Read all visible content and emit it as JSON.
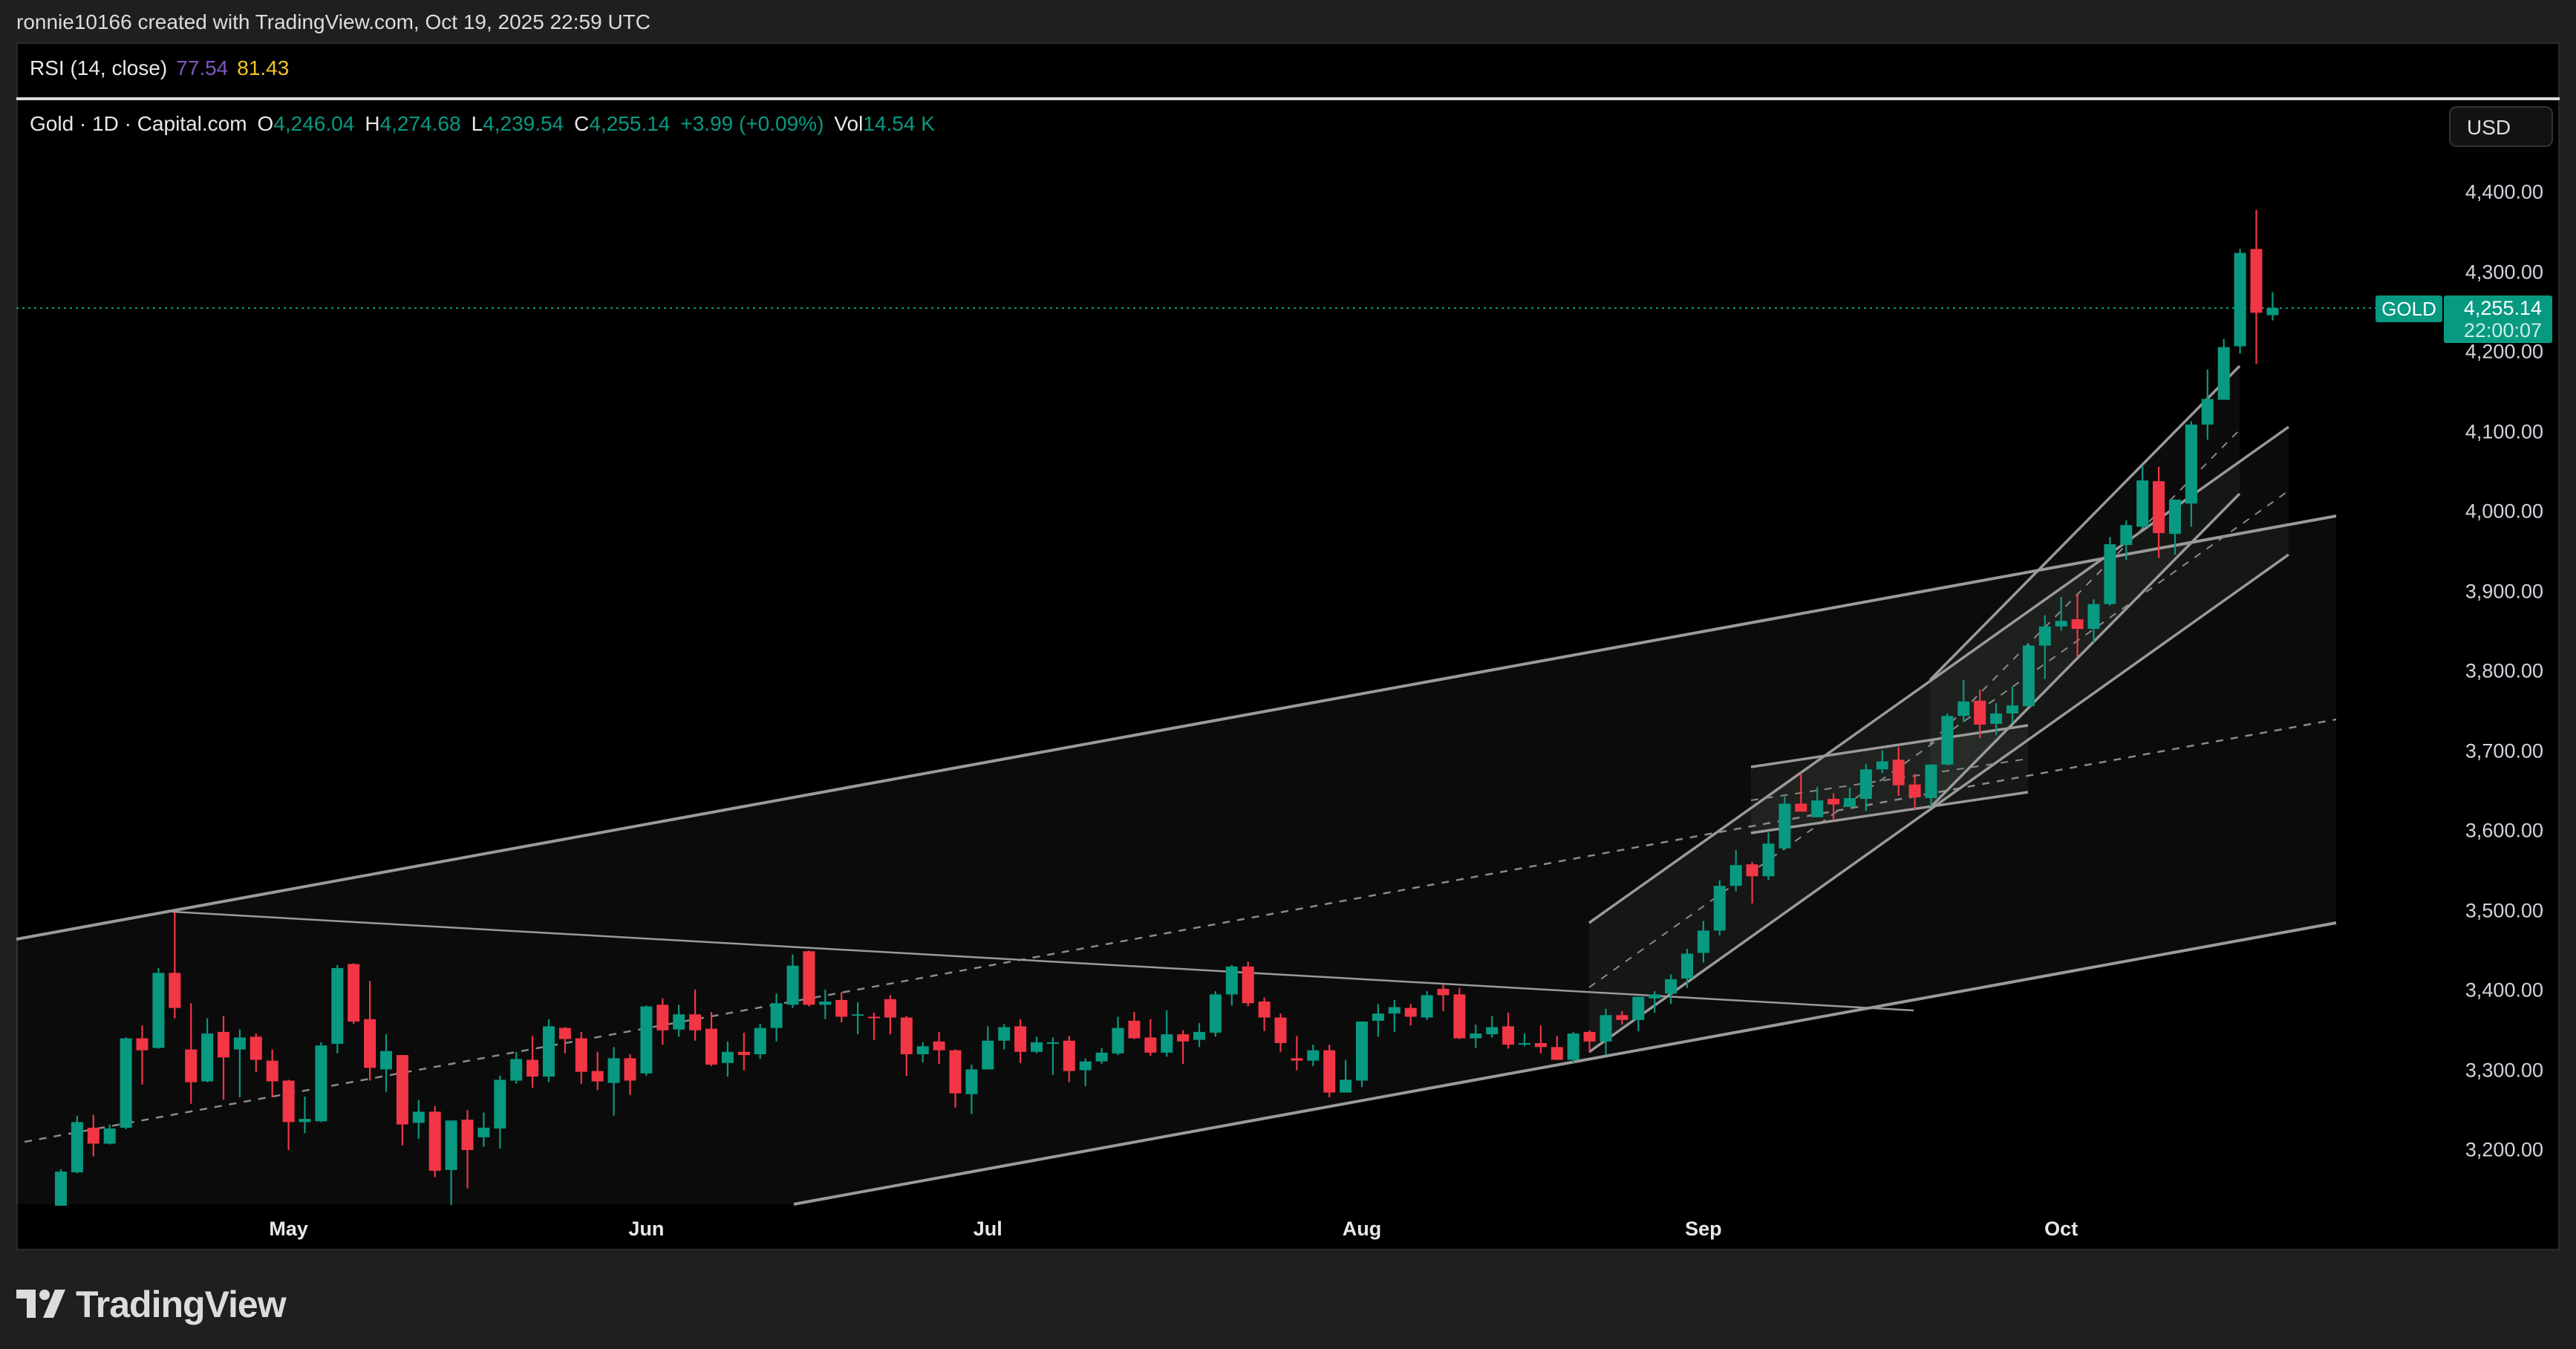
{
  "header": {
    "credit": "ronnie10166 created with TradingView.com, Oct 19, 2025 22:59 UTC"
  },
  "rsi": {
    "label": "RSI (14, close)",
    "value1": "77.54",
    "value2": "81.43"
  },
  "legend": {
    "symbol": "Gold · 1D · Capital.com",
    "o_label": "O",
    "o": "4,246.04",
    "h_label": "H",
    "h": "4,274.68",
    "l_label": "L",
    "l": "4,239.54",
    "c_label": "C",
    "c": "4,255.14",
    "change": "+3.99 (+0.09%)",
    "vol_label": "Vol",
    "vol": "14.54 K"
  },
  "currency_button": "USD",
  "last_price": {
    "tag": "GOLD",
    "price": "4,255.14",
    "countdown": "22:00:07"
  },
  "logo": {
    "text": "TradingView"
  },
  "colors": {
    "up": "#089981",
    "down": "#f23645",
    "background": "#000000",
    "drawing": "#9a9a9a",
    "rsi_line": "#7e57c2",
    "rsi_ma": "#f2c426"
  },
  "chart_data": {
    "type": "candlestick",
    "interval": "1D",
    "y_ticks": [
      "4,400.00",
      "4,300.00",
      "4,200.00",
      "4,100.00",
      "4,000.00",
      "3,900.00",
      "3,800.00",
      "3,700.00",
      "3,600.00",
      "3,500.00",
      "3,400.00",
      "3,300.00",
      "3,200.00"
    ],
    "y_tick_values": [
      4400,
      4300,
      4200,
      4100,
      4000,
      3900,
      3800,
      3700,
      3600,
      3500,
      3400,
      3300,
      3200
    ],
    "x_ticks": [
      {
        "label": "May",
        "index": 14
      },
      {
        "label": "Jun",
        "index": 36
      },
      {
        "label": "Jul",
        "index": 57
      },
      {
        "label": "Aug",
        "index": 80
      },
      {
        "label": "Sep",
        "index": 101
      },
      {
        "label": "Oct",
        "index": 123
      }
    ],
    "last_price": 4255.14,
    "ohlc_fields": [
      "open",
      "high",
      "low",
      "close"
    ],
    "ohlc": [
      [
        3105,
        3176,
        3090,
        3173
      ],
      [
        3172,
        3243,
        3171,
        3235
      ],
      [
        3228,
        3244,
        3192,
        3208
      ],
      [
        3208,
        3232,
        3207,
        3227
      ],
      [
        3228,
        3341,
        3226,
        3340
      ],
      [
        3340,
        3356,
        3282,
        3325
      ],
      [
        3328,
        3428,
        3327,
        3422
      ],
      [
        3422,
        3498,
        3365,
        3378
      ],
      [
        3326,
        3384,
        3258,
        3285
      ],
      [
        3286,
        3365,
        3285,
        3346
      ],
      [
        3348,
        3368,
        3263,
        3316
      ],
      [
        3326,
        3351,
        3266,
        3341
      ],
      [
        3342,
        3346,
        3298,
        3313
      ],
      [
        3312,
        3326,
        3266,
        3286
      ],
      [
        3287,
        3288,
        3200,
        3235
      ],
      [
        3235,
        3267,
        3221,
        3239
      ],
      [
        3236,
        3335,
        3235,
        3331
      ],
      [
        3333,
        3432,
        3321,
        3428
      ],
      [
        3433,
        3434,
        3358,
        3361
      ],
      [
        3364,
        3412,
        3287,
        3303
      ],
      [
        3301,
        3345,
        3273,
        3324
      ],
      [
        3319,
        3319,
        3206,
        3232
      ],
      [
        3234,
        3263,
        3214,
        3248
      ],
      [
        3248,
        3255,
        3166,
        3174
      ],
      [
        3175,
        3237,
        3131,
        3237
      ],
      [
        3238,
        3250,
        3152,
        3200
      ],
      [
        3216,
        3247,
        3204,
        3228
      ],
      [
        3227,
        3293,
        3202,
        3288
      ],
      [
        3287,
        3323,
        3283,
        3314
      ],
      [
        3313,
        3343,
        3278,
        3292
      ],
      [
        3292,
        3364,
        3285,
        3355
      ],
      [
        3353,
        3354,
        3321,
        3339
      ],
      [
        3340,
        3348,
        3283,
        3298
      ],
      [
        3299,
        3323,
        3275,
        3286
      ],
      [
        3284,
        3329,
        3243,
        3315
      ],
      [
        3315,
        3320,
        3269,
        3287
      ],
      [
        3296,
        3381,
        3293,
        3380
      ],
      [
        3382,
        3390,
        3332,
        3350
      ],
      [
        3351,
        3382,
        3342,
        3370
      ],
      [
        3370,
        3401,
        3337,
        3350
      ],
      [
        3352,
        3373,
        3305,
        3307
      ],
      [
        3309,
        3336,
        3292,
        3323
      ],
      [
        3323,
        3347,
        3300,
        3319
      ],
      [
        3320,
        3358,
        3314,
        3353
      ],
      [
        3353,
        3396,
        3336,
        3384
      ],
      [
        3382,
        3445,
        3378,
        3431
      ],
      [
        3449,
        3450,
        3380,
        3382
      ],
      [
        3382,
        3401,
        3364,
        3386
      ],
      [
        3388,
        3398,
        3360,
        3367
      ],
      [
        3369,
        3385,
        3345,
        3370
      ],
      [
        3367,
        3372,
        3338,
        3366
      ],
      [
        3389,
        3394,
        3345,
        3366
      ],
      [
        3366,
        3368,
        3293,
        3320
      ],
      [
        3320,
        3335,
        3310,
        3330
      ],
      [
        3336,
        3348,
        3308,
        3325
      ],
      [
        3325,
        3326,
        3253,
        3271
      ],
      [
        3270,
        3307,
        3245,
        3301
      ],
      [
        3301,
        3355,
        3301,
        3337
      ],
      [
        3337,
        3358,
        3326,
        3354
      ],
      [
        3355,
        3364,
        3309,
        3323
      ],
      [
        3323,
        3342,
        3321,
        3335
      ],
      [
        3333,
        3341,
        3294,
        3335
      ],
      [
        3337,
        3343,
        3285,
        3299
      ],
      [
        3300,
        3315,
        3280,
        3311
      ],
      [
        3311,
        3328,
        3308,
        3322
      ],
      [
        3321,
        3367,
        3319,
        3353
      ],
      [
        3362,
        3373,
        3339,
        3340
      ],
      [
        3341,
        3364,
        3318,
        3322
      ],
      [
        3322,
        3375,
        3317,
        3345
      ],
      [
        3345,
        3350,
        3308,
        3336
      ],
      [
        3338,
        3359,
        3329,
        3348
      ],
      [
        3347,
        3399,
        3342,
        3395
      ],
      [
        3395,
        3432,
        3381,
        3430
      ],
      [
        3430,
        3436,
        3380,
        3384
      ],
      [
        3386,
        3391,
        3349,
        3366
      ],
      [
        3366,
        3371,
        3323,
        3334
      ],
      [
        3315,
        3343,
        3300,
        3312
      ],
      [
        3312,
        3332,
        3305,
        3325
      ],
      [
        3325,
        3332,
        3266,
        3272
      ],
      [
        3272,
        3313,
        3272,
        3288
      ],
      [
        3287,
        3361,
        3279,
        3361
      ],
      [
        3362,
        3383,
        3342,
        3371
      ],
      [
        3371,
        3388,
        3348,
        3379
      ],
      [
        3378,
        3383,
        3356,
        3367
      ],
      [
        3366,
        3399,
        3363,
        3394
      ],
      [
        3402,
        3407,
        3374,
        3394
      ],
      [
        3395,
        3403,
        3339,
        3340
      ],
      [
        3340,
        3357,
        3328,
        3346
      ],
      [
        3345,
        3368,
        3341,
        3354
      ],
      [
        3355,
        3372,
        3327,
        3332
      ],
      [
        3332,
        3346,
        3330,
        3334
      ],
      [
        3334,
        3356,
        3321,
        3329
      ],
      [
        3329,
        3343,
        3313,
        3313
      ],
      [
        3313,
        3348,
        3309,
        3346
      ],
      [
        3348,
        3350,
        3323,
        3336
      ],
      [
        3336,
        3377,
        3319,
        3369
      ],
      [
        3369,
        3374,
        3357,
        3363
      ],
      [
        3363,
        3392,
        3349,
        3392
      ],
      [
        3390,
        3399,
        3372,
        3395
      ],
      [
        3396,
        3420,
        3383,
        3414
      ],
      [
        3415,
        3452,
        3403,
        3446
      ],
      [
        3447,
        3487,
        3435,
        3475
      ],
      [
        3475,
        3538,
        3469,
        3531
      ],
      [
        3531,
        3576,
        3524,
        3557
      ],
      [
        3558,
        3561,
        3509,
        3543
      ],
      [
        3543,
        3598,
        3538,
        3584
      ],
      [
        3578,
        3643,
        3576,
        3634
      ],
      [
        3634,
        3672,
        3624,
        3624
      ],
      [
        3617,
        3655,
        3617,
        3638
      ],
      [
        3640,
        3647,
        3613,
        3633
      ],
      [
        3630,
        3654,
        3630,
        3641
      ],
      [
        3640,
        3684,
        3625,
        3677
      ],
      [
        3677,
        3701,
        3672,
        3687
      ],
      [
        3689,
        3705,
        3644,
        3657
      ],
      [
        3658,
        3671,
        3627,
        3642
      ],
      [
        3641,
        3683,
        3630,
        3683
      ],
      [
        3683,
        3747,
        3682,
        3744
      ],
      [
        3744,
        3789,
        3736,
        3762
      ],
      [
        3763,
        3777,
        3716,
        3733
      ],
      [
        3734,
        3760,
        3720,
        3747
      ],
      [
        3747,
        3781,
        3735,
        3757
      ],
      [
        3756,
        3834,
        3756,
        3832
      ],
      [
        3832,
        3870,
        3790,
        3856
      ],
      [
        3856,
        3893,
        3851,
        3863
      ],
      [
        3865,
        3896,
        3818,
        3853
      ],
      [
        3853,
        3890,
        3836,
        3884
      ],
      [
        3884,
        3968,
        3882,
        3959
      ],
      [
        3958,
        3989,
        3939,
        3983
      ],
      [
        3981,
        4058,
        3979,
        4039
      ],
      [
        4038,
        4056,
        3942,
        3973
      ],
      [
        3972,
        4015,
        3946,
        4015
      ],
      [
        4010,
        4113,
        3981,
        4109
      ],
      [
        4109,
        4178,
        4090,
        4141
      ],
      [
        4140,
        4216,
        4140,
        4206
      ],
      [
        4207,
        4329,
        4198,
        4324
      ],
      [
        4329,
        4378,
        4185,
        4249
      ],
      [
        4246.04,
        4274.68,
        4239.54,
        4255.14
      ]
    ]
  }
}
